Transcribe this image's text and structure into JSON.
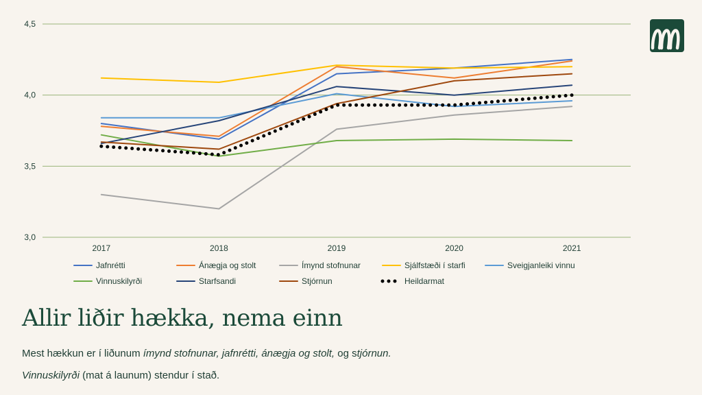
{
  "chart_data": {
    "type": "line",
    "categories": [
      "2017",
      "2018",
      "2019",
      "2020",
      "2021"
    ],
    "yticks": [
      "3,0",
      "3,5",
      "4,0",
      "4,5"
    ],
    "ylim": [
      3.0,
      4.5
    ],
    "grid": true,
    "legend_position": "bottom",
    "series": [
      {
        "name": "Jafnrétti",
        "color": "#4472c4",
        "style": "solid",
        "values": [
          3.8,
          3.69,
          4.15,
          4.19,
          4.25
        ]
      },
      {
        "name": "Ánægja og stolt",
        "color": "#ed7d31",
        "style": "solid",
        "values": [
          3.78,
          3.71,
          4.2,
          4.12,
          4.24
        ]
      },
      {
        "name": "Ímynd stofnunar",
        "color": "#a5a5a5",
        "style": "solid",
        "values": [
          3.3,
          3.2,
          3.76,
          3.86,
          3.92
        ]
      },
      {
        "name": "Sjálfstæði í starfi",
        "color": "#ffc000",
        "style": "solid",
        "values": [
          4.12,
          4.09,
          4.21,
          4.19,
          4.2
        ]
      },
      {
        "name": "Sveigjanleiki vinnu",
        "color": "#5b9bd5",
        "style": "solid",
        "values": [
          3.84,
          3.84,
          4.01,
          3.92,
          3.96
        ]
      },
      {
        "name": "Vinnuskilyrði",
        "color": "#70ad47",
        "style": "solid",
        "values": [
          3.72,
          3.57,
          3.68,
          3.69,
          3.68
        ]
      },
      {
        "name": "Starfsandi",
        "color": "#264478",
        "style": "solid",
        "values": [
          3.66,
          3.82,
          4.06,
          4.0,
          4.07
        ]
      },
      {
        "name": "Stjórnun",
        "color": "#9e480e",
        "style": "solid",
        "values": [
          3.67,
          3.62,
          3.94,
          4.1,
          4.15
        ]
      },
      {
        "name": "Heildarmat",
        "color": "#000000",
        "style": "dotted",
        "values": [
          3.64,
          3.58,
          3.93,
          3.93,
          4.0
        ]
      }
    ]
  },
  "headline": "Allir liðir hækka, nema einn",
  "summary": {
    "p1_a": "Mest hækkun er í liðunum ",
    "p1_b": "ímynd stofnunar, jafnrétti, ánægja og stolt,",
    "p1_c": " og s",
    "p1_d": "tjórnun.",
    "p2_a": "Vinnuskilyrði",
    "p2_b": " (mat á launum) stendur í stað."
  },
  "colors": {
    "background": "#f8f4ee",
    "grid": "#9ab47a",
    "text": "#1e3d33",
    "brand": "#1b4a39"
  },
  "logo_icon": "wave-logo-icon"
}
